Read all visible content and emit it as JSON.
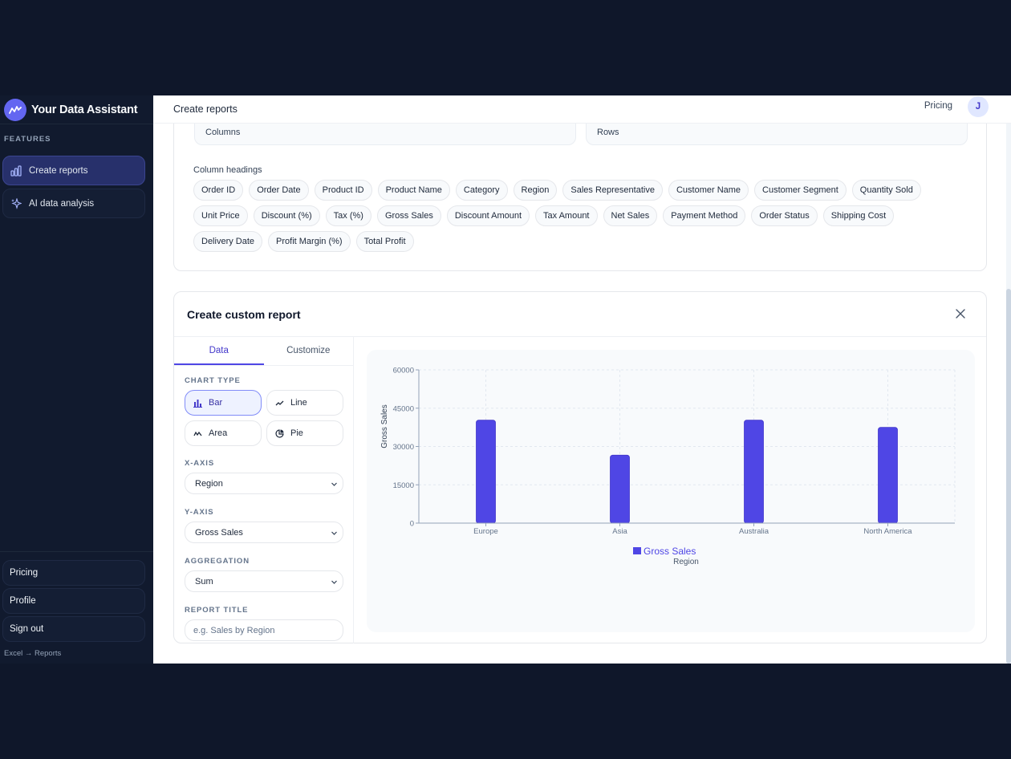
{
  "sidebar": {
    "brand": "Your Data Assistant",
    "section_label": "FEATURES",
    "items": [
      {
        "label": "Create reports",
        "icon": "bar-chart-icon",
        "active": true
      },
      {
        "label": "AI data analysis",
        "icon": "sparkle-icon",
        "active": false
      }
    ],
    "bottom_items": [
      {
        "label": "Pricing"
      },
      {
        "label": "Profile"
      },
      {
        "label": "Sign out"
      }
    ],
    "footer_note": "Excel → Reports"
  },
  "header": {
    "title": "Create reports",
    "pricing_link": "Pricing",
    "avatar_initial": "J"
  },
  "summary": {
    "columns_label": "Columns",
    "rows_label": "Rows"
  },
  "column_headings": {
    "label": "Column headings",
    "items": [
      "Order ID",
      "Order Date",
      "Product ID",
      "Product Name",
      "Category",
      "Region",
      "Sales Representative",
      "Customer Name",
      "Customer Segment",
      "Quantity Sold",
      "Unit Price",
      "Discount (%)",
      "Tax (%)",
      "Gross Sales",
      "Discount Amount",
      "Tax Amount",
      "Net Sales",
      "Payment Method",
      "Order Status",
      "Shipping Cost",
      "Delivery Date",
      "Profit Margin (%)",
      "Total Profit"
    ]
  },
  "custom_report": {
    "title": "Create custom report",
    "tabs": [
      {
        "label": "Data",
        "active": true
      },
      {
        "label": "Customize",
        "active": false
      }
    ],
    "chart_type_label": "CHART TYPE",
    "chart_types": [
      {
        "label": "Bar",
        "active": true
      },
      {
        "label": "Line",
        "active": false
      },
      {
        "label": "Area",
        "active": false
      },
      {
        "label": "Pie",
        "active": false
      }
    ],
    "x_axis_label": "X-AXIS",
    "x_axis_value": "Region",
    "y_axis_label": "Y-AXIS",
    "y_axis_value": "Gross Sales",
    "aggregation_label": "AGGREGATION",
    "aggregation_value": "Sum",
    "report_title_label": "REPORT TITLE",
    "report_title_placeholder": "e.g. Sales by Region",
    "report_title_value": ""
  },
  "colors": {
    "accent": "#4f46e5",
    "bar": "#4f46e5",
    "sidebar_bg": "#111a2e",
    "active_nav": "#27306b"
  },
  "chart_data": {
    "type": "bar",
    "categories": [
      "Europe",
      "Asia",
      "Australia",
      "North America"
    ],
    "series": [
      {
        "name": "Gross Sales",
        "values": [
          40300,
          26600,
          40300,
          37500
        ]
      }
    ],
    "title": "",
    "xlabel": "Region",
    "ylabel": "Gross Sales",
    "ylim": [
      0,
      60000
    ],
    "yticks": [
      0,
      15000,
      30000,
      45000,
      60000
    ],
    "grid": true,
    "legend_position": "bottom"
  }
}
